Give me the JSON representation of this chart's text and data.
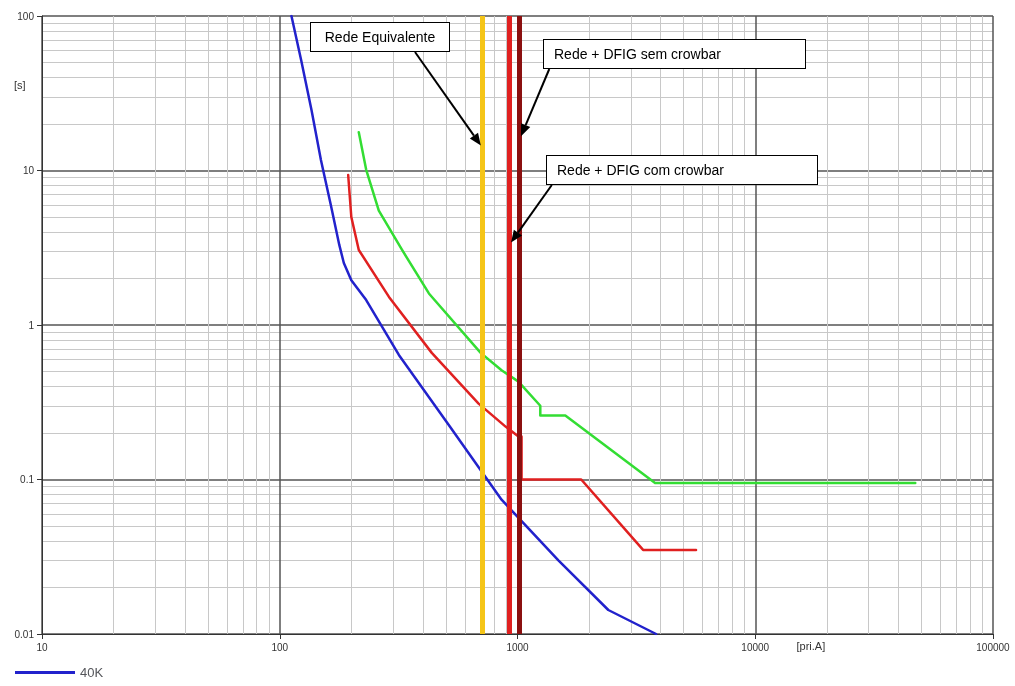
{
  "chart_data": {
    "type": "line",
    "xlabel": "[pri.A]",
    "ylabel": "[s]",
    "log": "xy",
    "grid": true,
    "legend": "bottom left",
    "marker": "none",
    "line_style": "solid",
    "xlim": [
      10,
      100000
    ],
    "xticks": [
      10,
      100,
      1000,
      10000,
      100000
    ],
    "ylim": [
      0.01,
      100
    ],
    "yticks": [
      0.01,
      0.1,
      1,
      10,
      100
    ],
    "series": [
      {
        "color": "#33dd33",
        "x": [
          215,
          231,
          261,
          327,
          424,
          700,
          857,
          1009,
          1247,
          1247,
          1589,
          3790,
          47100
        ],
        "values": [
          17.7,
          10.1,
          5.5,
          3.06,
          1.6,
          0.66,
          0.51,
          0.43,
          0.3,
          0.26,
          0.26,
          0.095,
          0.095
        ]
      },
      {
        "name": "40K",
        "color": "#2222cc",
        "x": [
          112,
          123,
          136,
          149,
          164,
          178,
          186,
          200,
          231,
          317,
          514,
          857,
          1486,
          2410,
          3828
        ],
        "values": [
          100,
          51.9,
          24.6,
          11.7,
          5.98,
          3.3,
          2.52,
          1.95,
          1.45,
          0.64,
          0.225,
          0.074,
          0.03,
          0.0143,
          0.01
        ]
      },
      {
        "color": "#e02020",
        "x": [
          194,
          200,
          215,
          288,
          436,
          686,
          891,
          1009,
          1040,
          1040,
          1854,
          3375,
          5636
        ],
        "values": [
          9.35,
          5.0,
          3.06,
          1.52,
          0.66,
          0.31,
          0.22,
          0.19,
          0.19,
          0.1,
          0.1,
          0.035,
          0.035
        ]
      }
    ],
    "ref_lines": [
      {
        "axis": "x",
        "value": 713,
        "label": "Rede Equivalente",
        "color": "#f5c518"
      },
      {
        "axis": "x",
        "value": 925,
        "label": "Rede + DFIG com crowbar",
        "color": "#e02020"
      },
      {
        "axis": "x",
        "value": 1020,
        "label": "Rede + DFIG sem crowbar",
        "color": "#8b1010"
      }
    ]
  }
}
